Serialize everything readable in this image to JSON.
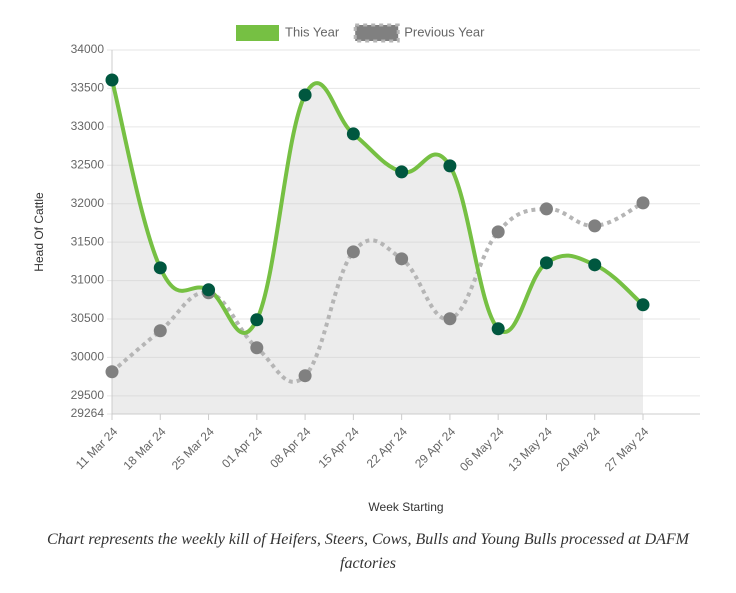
{
  "chart_data": {
    "type": "line",
    "x_label": "Week Starting",
    "y_label": "Head Of Cattle",
    "categories": [
      "11 Mar 24",
      "18 Mar 24",
      "25 Mar 24",
      "01 Apr 24",
      "08 Apr 24",
      "15 Apr 24",
      "22 Apr 24",
      "29 Apr 24",
      "06 May 24",
      "13 May 24",
      "20 May 24",
      "27 May 24"
    ],
    "series": [
      {
        "name": "This Year",
        "color": "#76c043",
        "point_color": "#00573f",
        "fill": true,
        "dashed": false,
        "values": [
          33610,
          31166,
          30880,
          30490,
          33415,
          32908,
          32414,
          32492,
          30373,
          31231,
          31205,
          30685
        ]
      },
      {
        "name": "Previous Year",
        "color": "#b5b5b5",
        "point_color": "#808080",
        "fill": false,
        "dashed": true,
        "values": [
          29814,
          30347,
          30841,
          30126,
          29762,
          31374,
          31283,
          30503,
          31634,
          31933,
          31712,
          32011
        ]
      }
    ],
    "ylim": [
      29264,
      34000
    ],
    "yticks": [
      29264,
      29500,
      30000,
      30500,
      31000,
      31500,
      32000,
      32500,
      33000,
      33500,
      34000
    ],
    "grid": true,
    "legend": "top"
  },
  "caption": "Chart represents the weekly kill of Heifers, Steers, Cows, Bulls and Young Bulls processed at DAFM factories"
}
